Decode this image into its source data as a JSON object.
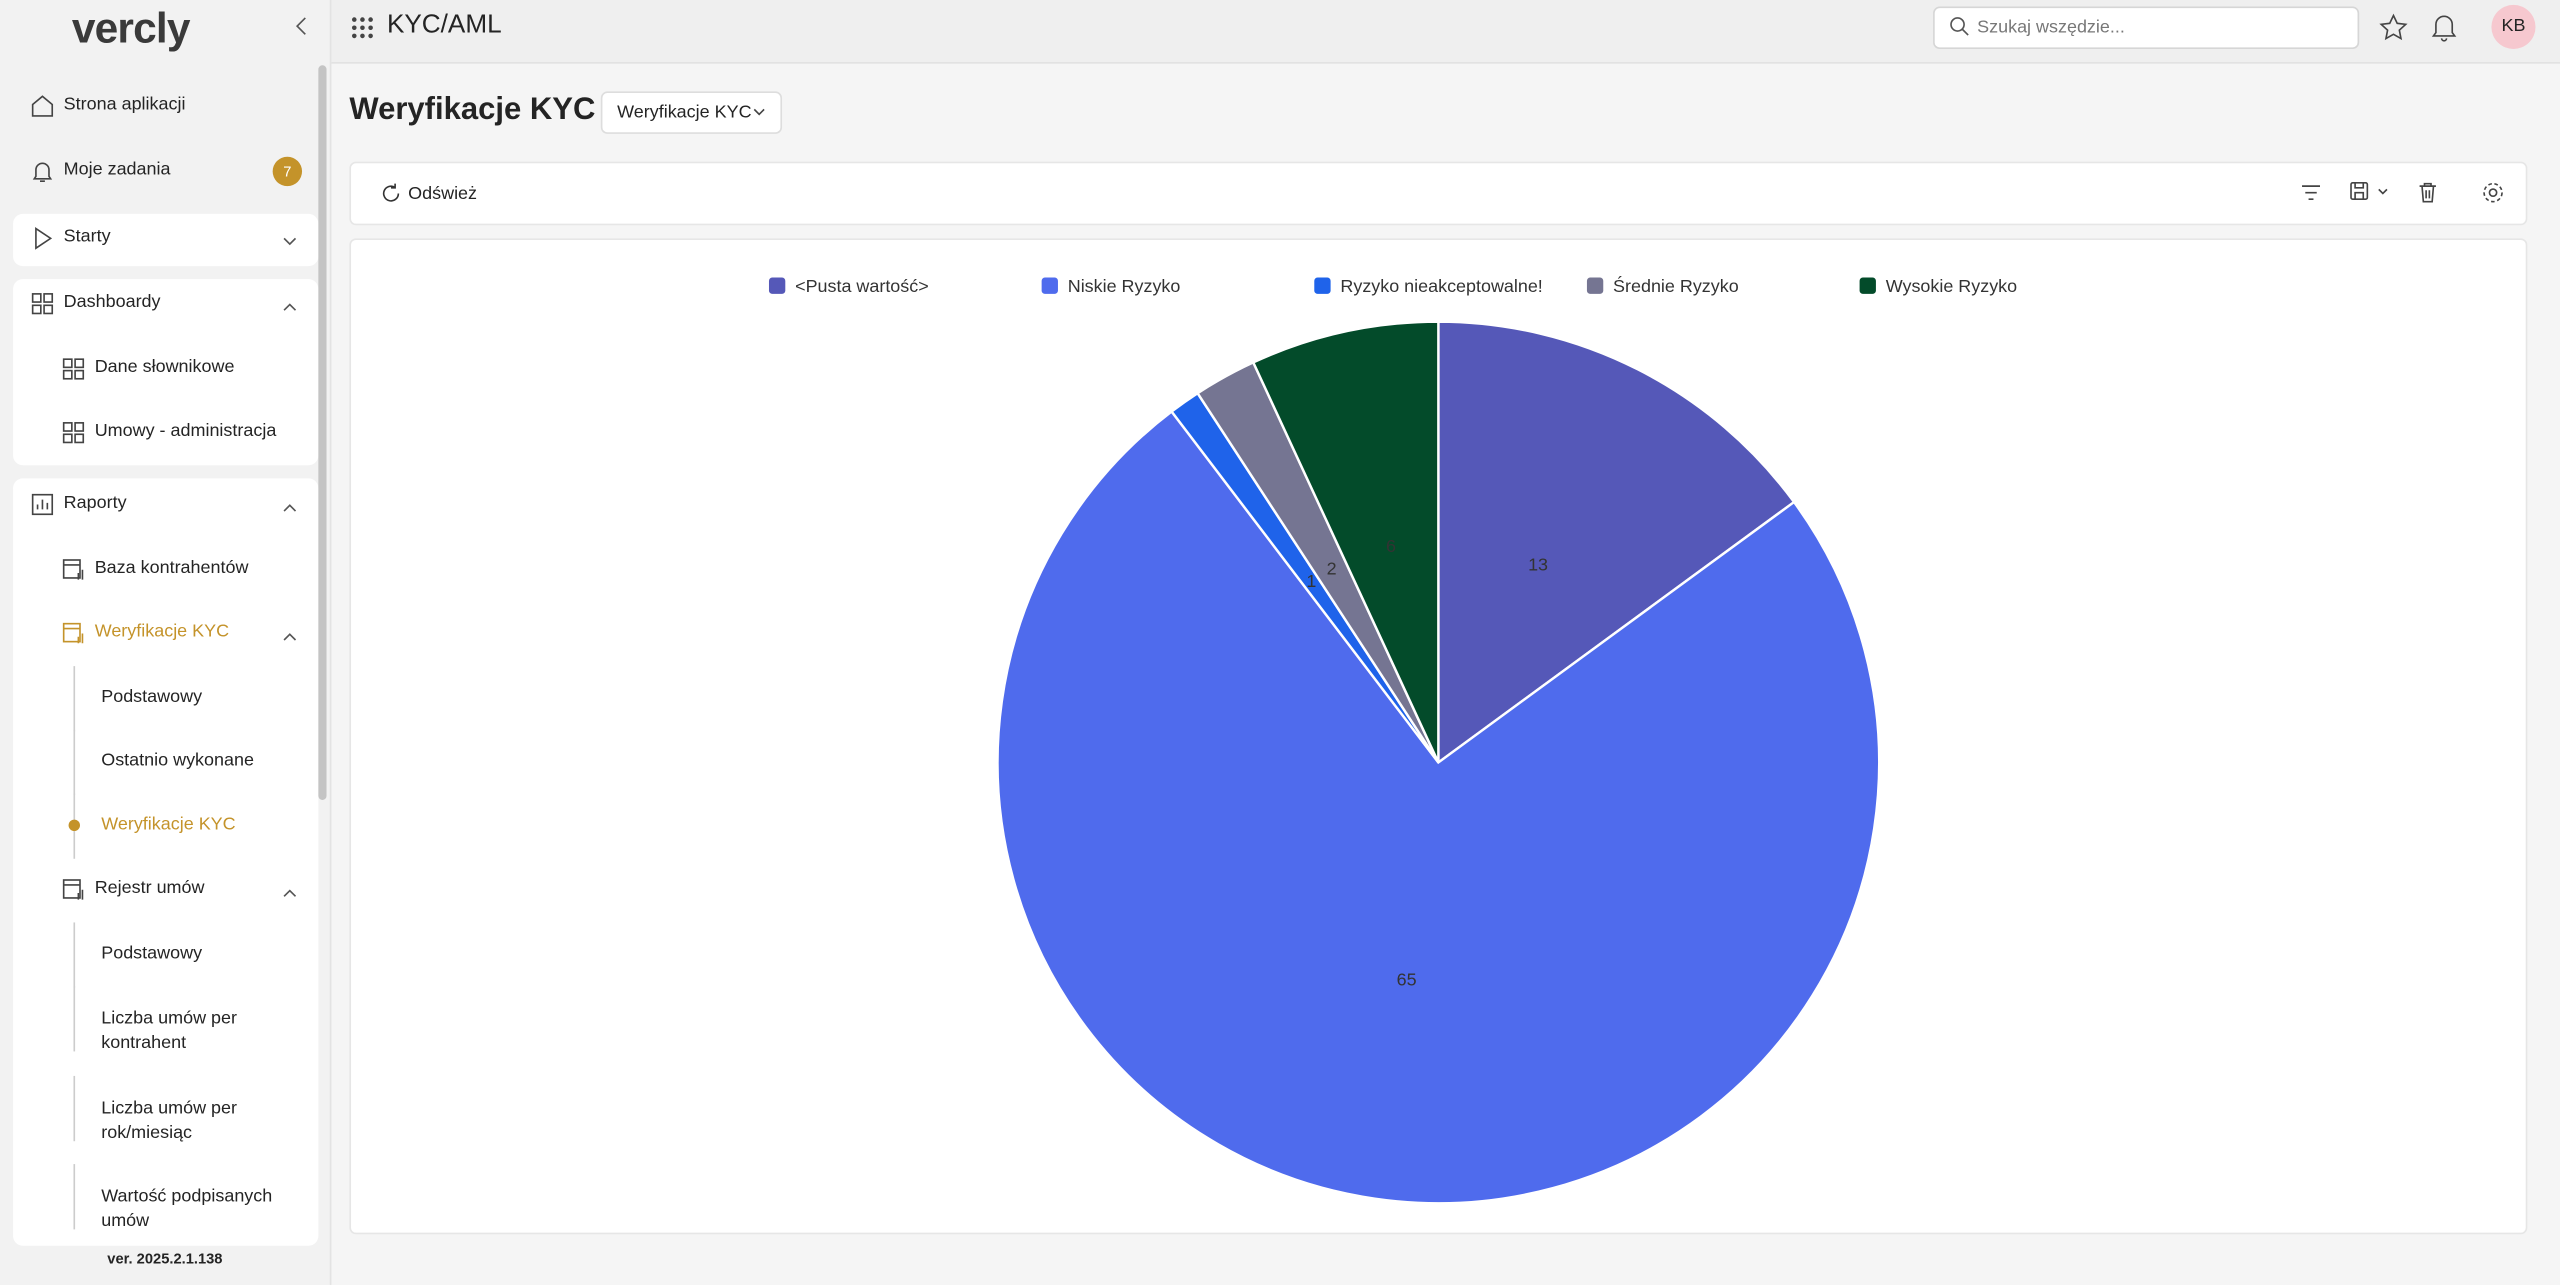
{
  "header": {
    "brand": "vercly",
    "module": "KYC/AML",
    "search_placeholder": "Szukaj wszędzie...",
    "avatar": "KB"
  },
  "sidebar": {
    "items": [
      {
        "label": "Strona aplikacji"
      },
      {
        "label": "Moje zadania",
        "badge": "7"
      },
      {
        "label": "Starty"
      },
      {
        "label": "Dashboardy"
      },
      {
        "label": "Dane słownikowe"
      },
      {
        "label": "Umowy - administracja"
      },
      {
        "label": "Raporty"
      },
      {
        "label": "Baza kontrahentów"
      },
      {
        "label": "Weryfikacje KYC"
      },
      {
        "label": "Podstawowy"
      },
      {
        "label": "Ostatnio wykonane"
      },
      {
        "label": "Weryfikacje KYC"
      },
      {
        "label": "Rejestr umów"
      },
      {
        "label": "Podstawowy"
      },
      {
        "label": "Liczba umów per kontrahent"
      },
      {
        "label": "Liczba umów per rok/miesiąc"
      },
      {
        "label": "Wartość podpisanych umów"
      }
    ],
    "version": "ver. 2025.2.1.138"
  },
  "page": {
    "title": "Weryfikacje KYC",
    "view_selector": "Weryfikacje KYC",
    "refresh": "Odśwież"
  },
  "chart_data": {
    "type": "pie",
    "categories": [
      "<Pusta wartość>",
      "Niskie Ryzyko",
      "Ryzyko nieakceptowalne!",
      "Średnie Ryzyko",
      "Wysokie Ryzyko"
    ],
    "values": [
      13,
      65,
      1,
      2,
      6
    ],
    "colors": [
      "#5558b8",
      "#4f6bed",
      "#1f63ea",
      "#757592",
      "#034b2a"
    ],
    "legend": "top"
  }
}
